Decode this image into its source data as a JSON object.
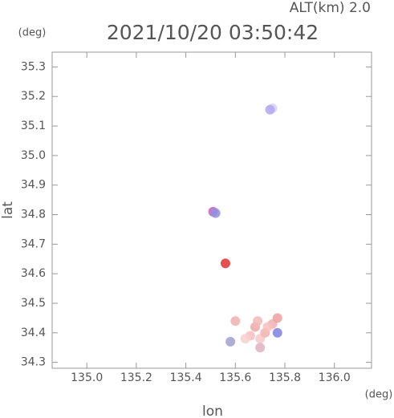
{
  "chart_data": {
    "type": "scatter",
    "title": "2021/10/20 03:50:42",
    "subtitle": "ALT(km) 2.0",
    "x_label": "lon",
    "y_label": "lat",
    "x_unit": "(deg)",
    "y_unit": "(deg)",
    "xlim": [
      134.86,
      136.15
    ],
    "ylim": [
      34.28,
      35.35
    ],
    "xticks": [
      {
        "value": 135.0,
        "label": "135.0"
      },
      135.2,
      135.4,
      135.6,
      135.8,
      {
        "value": 136.0,
        "label": "136.0"
      }
    ],
    "yticks": [
      34.3,
      34.4,
      34.5,
      34.6,
      34.7,
      34.8,
      34.9,
      {
        "value": 35.0,
        "label": "35.0"
      },
      35.1,
      35.2,
      35.3
    ],
    "x": [
      135.75,
      135.74,
      135.51,
      135.52,
      135.56,
      135.6,
      135.58,
      135.66,
      135.68,
      135.7,
      135.69,
      135.72,
      135.75,
      135.77,
      135.77,
      135.64,
      135.7,
      135.73
    ],
    "y": [
      35.16,
      35.155,
      34.81,
      34.805,
      34.635,
      34.44,
      34.37,
      34.39,
      34.42,
      34.38,
      34.44,
      34.4,
      34.43,
      34.4,
      34.45,
      34.38,
      34.35,
      34.42
    ],
    "colors": [
      "#d8d0f8",
      "#b0a8f0",
      "#c060c0",
      "#9090e0",
      "#e03030",
      "#f0b0b0",
      "#a0a0d0",
      "#f4c0c0",
      "#f0a8a8",
      "#f8c8c8",
      "#f0b8b8",
      "#f4b0b0",
      "#f0b0b0",
      "#8080e0",
      "#f0a0a0",
      "#f8d0d0",
      "#e0b0c0",
      "#f8c0c0"
    ]
  }
}
